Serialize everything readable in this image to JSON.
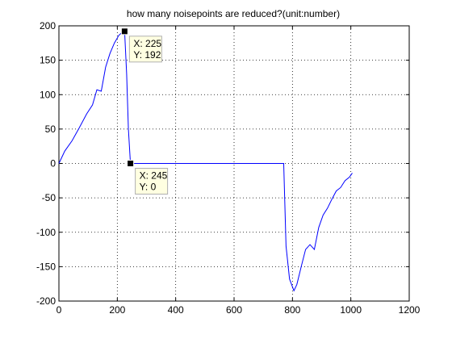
{
  "chart_data": {
    "type": "line",
    "title": "how many noisepoints are reduced?(unit:number)",
    "xlabel": "",
    "ylabel": "",
    "xlim": [
      0,
      1200
    ],
    "ylim": [
      -200,
      200
    ],
    "grid": true,
    "x_ticks": [
      0,
      200,
      400,
      600,
      800,
      1000,
      1200
    ],
    "y_ticks": [
      -200,
      -150,
      -100,
      -50,
      0,
      50,
      100,
      150,
      200
    ],
    "x_tick_labels": [
      "0",
      "200",
      "400",
      "600",
      "800",
      "1000",
      "1200"
    ],
    "y_tick_labels": [
      "-200",
      "-150",
      "-100",
      "-50",
      "0",
      "50",
      "100",
      "150",
      "200"
    ],
    "line_color": "#0000ff",
    "series": [
      {
        "x": [
          0,
          20,
          45,
          70,
          95,
          115,
          130,
          145,
          160,
          175,
          190,
          205,
          215,
          225,
          232,
          238,
          245,
          770,
          778,
          790,
          805,
          815,
          830,
          845,
          860,
          875,
          890,
          905,
          920,
          935,
          950,
          965,
          980,
          995,
          1005
        ],
        "y": [
          0,
          18,
          33,
          52,
          72,
          85,
          107,
          105,
          140,
          160,
          175,
          186,
          190,
          192,
          130,
          50,
          0,
          0,
          -120,
          -168,
          -185,
          -176,
          -150,
          -125,
          -118,
          -125,
          -93,
          -75,
          -65,
          -52,
          -40,
          -35,
          -25,
          -20,
          -14
        ]
      }
    ],
    "annotations": [
      {
        "x": 225,
        "y": 192,
        "label_x": "X: 225",
        "label_y": "Y: 192"
      },
      {
        "x": 245,
        "y": 0,
        "label_x": "X: 245",
        "label_y": "Y: 0"
      }
    ]
  }
}
